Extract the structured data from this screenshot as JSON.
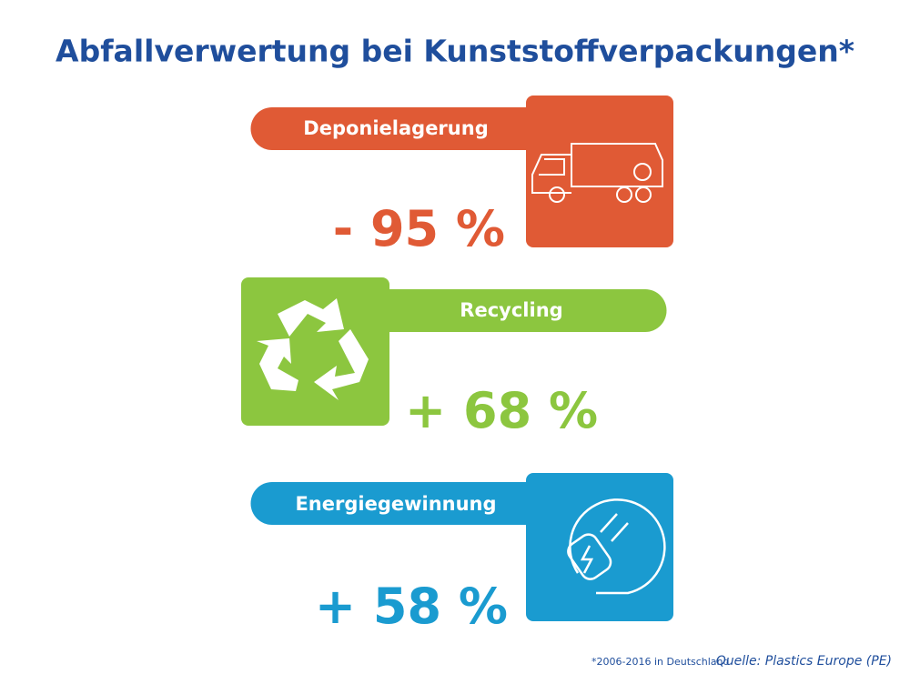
{
  "title": "Abfallverwertung bei Kunststoffverpackungen*",
  "items": [
    {
      "label": "Deponielagerung",
      "value": "- 95 %"
    },
    {
      "label": "Recycling",
      "value": "+ 68 %"
    },
    {
      "label": "Energiegewinnung",
      "value": "+ 58 %"
    }
  ],
  "footnote": "*2006-2016 in Deutschland",
  "source": "Quelle: Plastics Europe (PE)"
}
